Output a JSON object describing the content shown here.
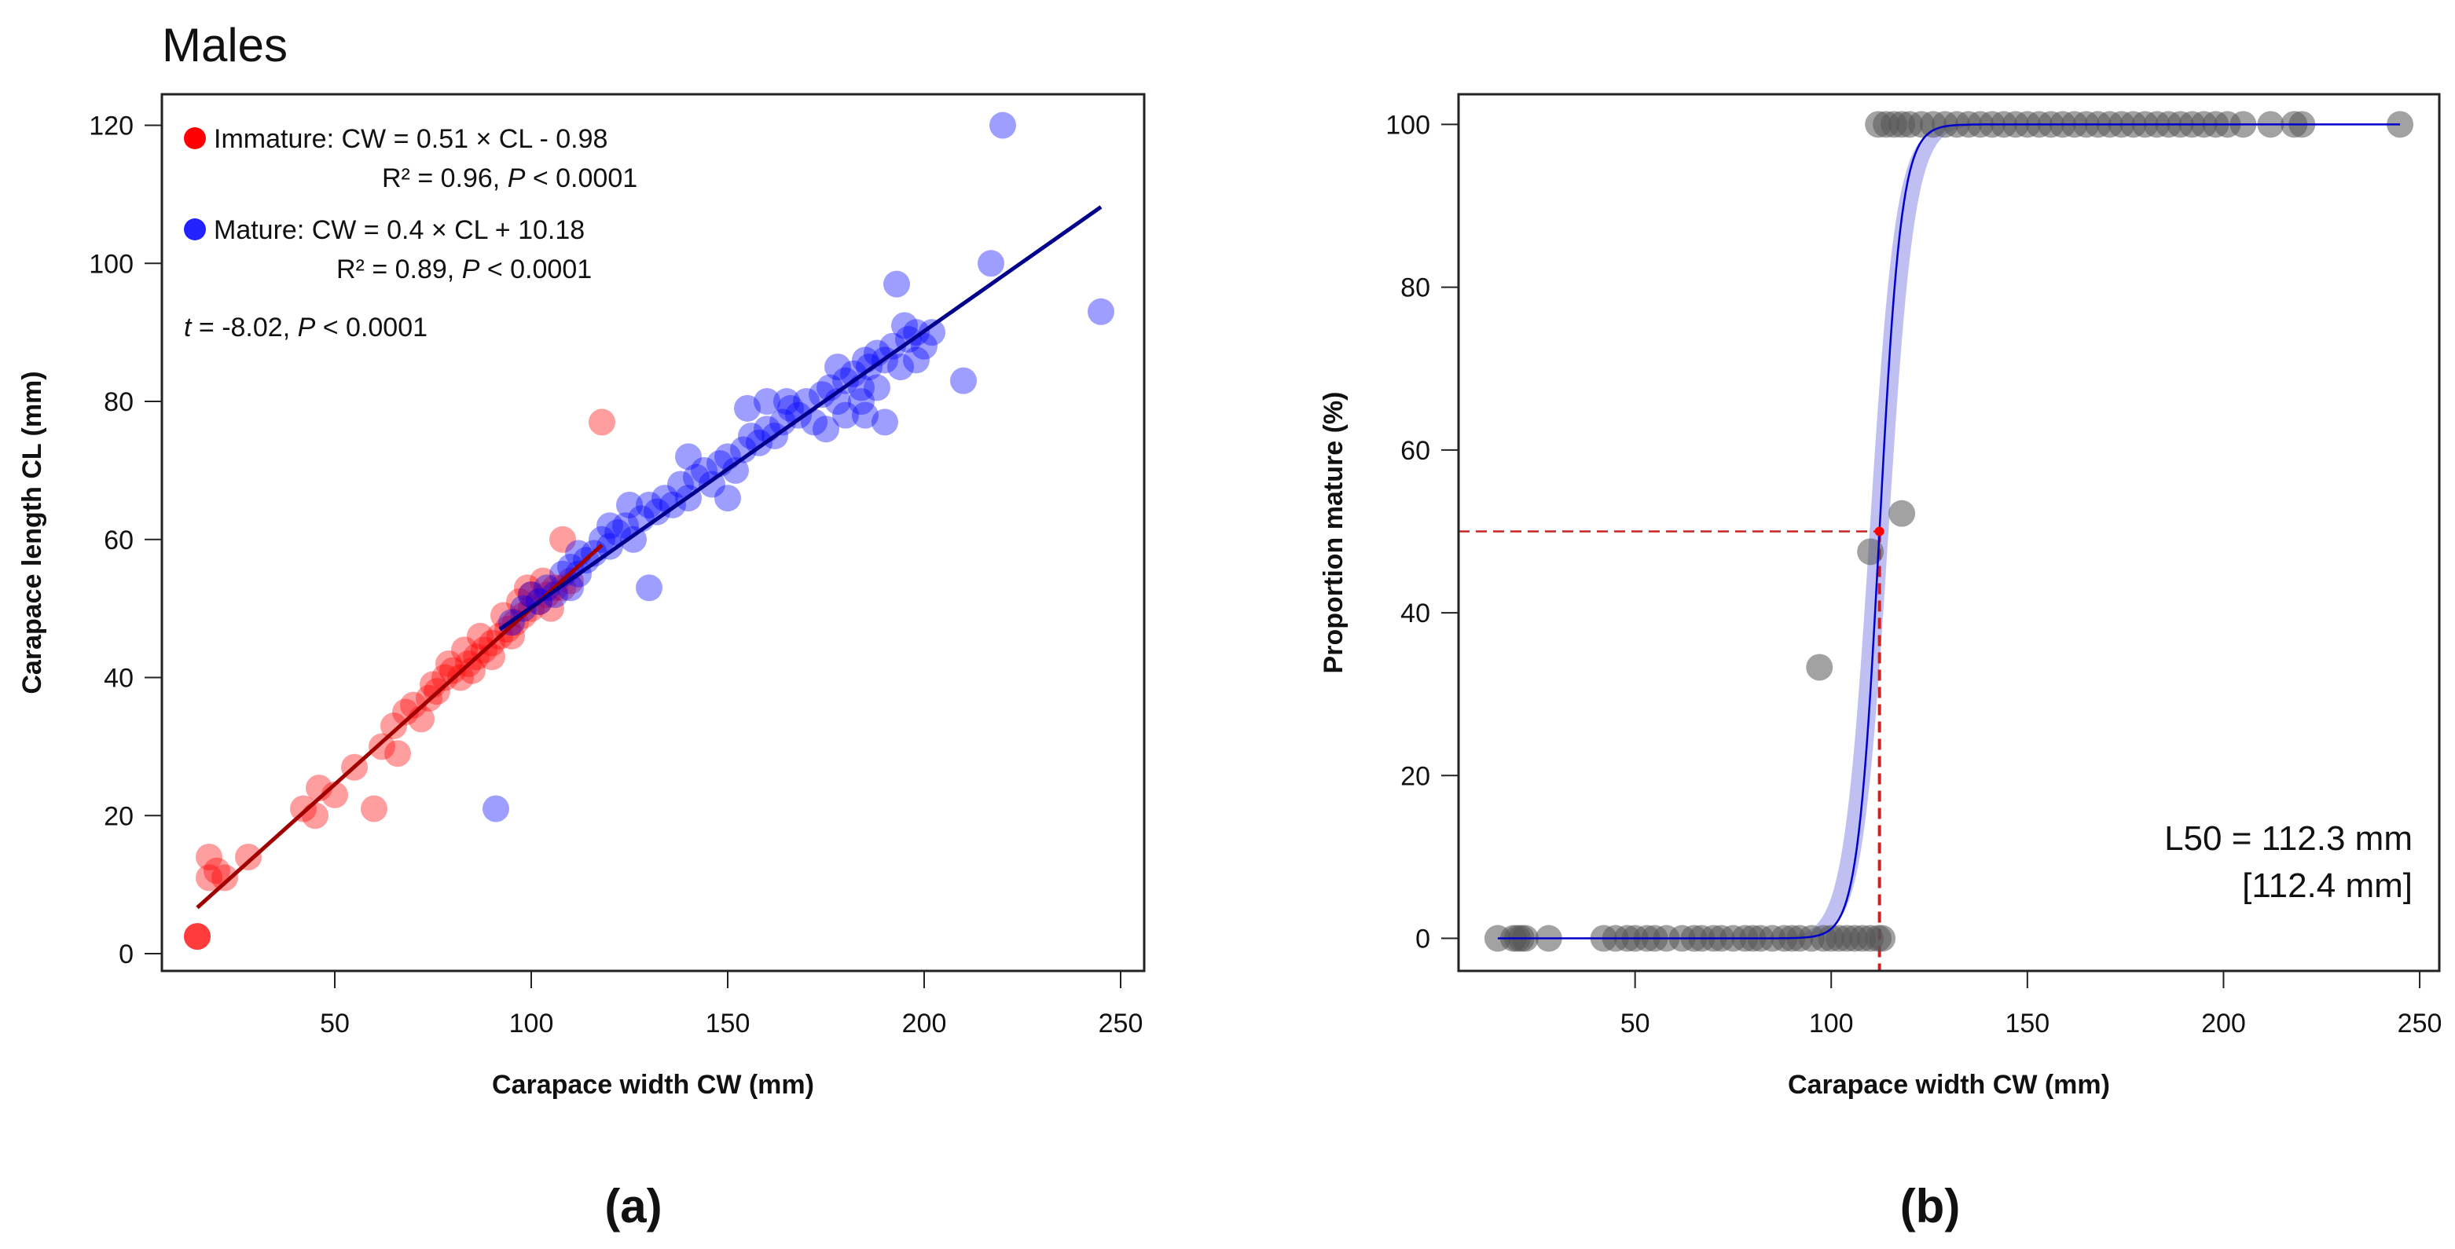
{
  "chart_data": [
    {
      "type": "scatter",
      "title": "Males",
      "panel_label": "(a)",
      "xlabel": "Carapace width CW (mm)",
      "ylabel": "Carapace length CL (mm)",
      "xlim": [
        6,
        256
      ],
      "ylim": [
        -2.5,
        124.5
      ],
      "xticks": [
        50,
        100,
        150,
        200,
        250
      ],
      "yticks": [
        0,
        20,
        40,
        60,
        80,
        100,
        120
      ],
      "grid": false,
      "legend_position": "top-left",
      "series": [
        {
          "name": "Immature",
          "color": "#ff0000",
          "equation": "Immature:  CW = 0.51 × CL - 0.98",
          "stats_r2": "R² = 0.96, ",
          "stats_p_label": "P",
          "stats_p_value": " < 0.0001",
          "fit": {
            "slope": 0.51,
            "intercept": -0.98,
            "x_range": [
              15,
              118
            ],
            "color": "#a00000"
          },
          "points": [
            [
              15,
              2.5
            ],
            [
              15,
              2.5
            ],
            [
              15,
              2.5
            ],
            [
              18,
              14
            ],
            [
              18,
              11
            ],
            [
              20,
              12
            ],
            [
              22,
              11
            ],
            [
              28,
              14
            ],
            [
              42,
              21
            ],
            [
              45,
              20
            ],
            [
              46,
              24
            ],
            [
              50,
              23
            ],
            [
              55,
              27
            ],
            [
              60,
              21
            ],
            [
              62,
              30
            ],
            [
              65,
              33
            ],
            [
              66,
              29
            ],
            [
              68,
              35
            ],
            [
              70,
              36
            ],
            [
              72,
              34
            ],
            [
              74,
              37
            ],
            [
              75,
              39
            ],
            [
              76,
              38
            ],
            [
              78,
              40
            ],
            [
              79,
              42
            ],
            [
              80,
              41
            ],
            [
              82,
              40
            ],
            [
              84,
              42
            ],
            [
              85,
              41
            ],
            [
              86,
              43
            ],
            [
              88,
              44
            ],
            [
              90,
              45
            ],
            [
              90,
              43
            ],
            [
              92,
              46
            ],
            [
              94,
              47
            ],
            [
              95,
              46
            ],
            [
              96,
              48
            ],
            [
              97,
              51
            ],
            [
              98,
              49
            ],
            [
              100,
              50
            ],
            [
              100,
              52
            ],
            [
              102,
              51
            ],
            [
              104,
              52
            ],
            [
              105,
              50
            ],
            [
              106,
              53
            ],
            [
              108,
              53
            ],
            [
              108,
              60
            ],
            [
              110,
              54
            ],
            [
              118,
              77
            ],
            [
              83,
              44
            ],
            [
              87,
              46
            ],
            [
              93,
              49
            ],
            [
              99,
              53
            ],
            [
              103,
              54
            ]
          ]
        },
        {
          "name": "Mature",
          "color": "#0000ff",
          "equation": "Mature:  CW = 0.4 × CL + 10.18",
          "stats_r2": "R² = 0.89, ",
          "stats_p_label": "P",
          "stats_p_value": " < 0.0001",
          "fit": {
            "slope": 0.4,
            "intercept": 10.18,
            "x_range": [
              92,
              245
            ],
            "color": "#00008b"
          },
          "points": [
            [
              91,
              21
            ],
            [
              130,
              53
            ],
            [
              220,
              120
            ],
            [
              217,
              100
            ],
            [
              245,
              93
            ],
            [
              210,
              83
            ],
            [
              193,
              97
            ],
            [
              190,
              77
            ],
            [
              95,
              48
            ],
            [
              98,
              50
            ],
            [
              100,
              52
            ],
            [
              102,
              51
            ],
            [
              104,
              53
            ],
            [
              106,
              52
            ],
            [
              108,
              55
            ],
            [
              110,
              56
            ],
            [
              112,
              55
            ],
            [
              114,
              57
            ],
            [
              116,
              58
            ],
            [
              118,
              60
            ],
            [
              120,
              59
            ],
            [
              122,
              61
            ],
            [
              124,
              62
            ],
            [
              126,
              60
            ],
            [
              128,
              63
            ],
            [
              130,
              65
            ],
            [
              132,
              64
            ],
            [
              134,
              66
            ],
            [
              136,
              65
            ],
            [
              138,
              68
            ],
            [
              140,
              66
            ],
            [
              142,
              69
            ],
            [
              144,
              70
            ],
            [
              146,
              68
            ],
            [
              148,
              71
            ],
            [
              150,
              72
            ],
            [
              152,
              70
            ],
            [
              154,
              73
            ],
            [
              155,
              79
            ],
            [
              156,
              75
            ],
            [
              158,
              74
            ],
            [
              160,
              76
            ],
            [
              162,
              75
            ],
            [
              164,
              77
            ],
            [
              166,
              79
            ],
            [
              168,
              78
            ],
            [
              170,
              80
            ],
            [
              172,
              77
            ],
            [
              174,
              81
            ],
            [
              176,
              82
            ],
            [
              178,
              80
            ],
            [
              180,
              83
            ],
            [
              182,
              84
            ],
            [
              184,
              82
            ],
            [
              185,
              86
            ],
            [
              186,
              85
            ],
            [
              188,
              87
            ],
            [
              190,
              86
            ],
            [
              192,
              88
            ],
            [
              194,
              85
            ],
            [
              196,
              89
            ],
            [
              198,
              90
            ],
            [
              200,
              88
            ],
            [
              202,
              90
            ],
            [
              188,
              82
            ],
            [
              180,
              78
            ],
            [
              175,
              76
            ],
            [
              165,
              80
            ],
            [
              150,
              66
            ],
            [
              140,
              72
            ],
            [
              160,
              80
            ],
            [
              178,
              85
            ],
            [
              184,
              80
            ],
            [
              195,
              91
            ],
            [
              198,
              86
            ],
            [
              120,
              62
            ],
            [
              125,
              65
            ],
            [
              110,
              53
            ],
            [
              112,
              58
            ],
            [
              185,
              78
            ]
          ]
        }
      ],
      "annotation_t_label": "t",
      "annotation_t_value": " = -8.02, ",
      "annotation_p_label": "P",
      "annotation_p_value": " < 0.0001"
    },
    {
      "type": "scatter",
      "panel_label": "(b)",
      "xlabel": "Carapace width CW (mm)",
      "ylabel": "Proportion mature (%)",
      "xlim": [
        5,
        255
      ],
      "ylim": [
        -4,
        103.7
      ],
      "xticks": [
        50,
        100,
        150,
        200,
        250
      ],
      "yticks": [
        0,
        20,
        40,
        60,
        80,
        100
      ],
      "grid": false,
      "point_color": "#555555",
      "curve_color": "#0000cc",
      "ci_color": "#aaaaee",
      "ref_line_color": "#cc2222",
      "logistic": {
        "L50": 112.3,
        "slope": 0.36,
        "x_range": [
          15,
          245
        ]
      },
      "ci_upper": {
        "L50": 109.8,
        "slope": 0.3
      },
      "ci_lower": {
        "L50": 114.6,
        "slope": 0.3
      },
      "l50_annotation": "L50 = 112.3 mm",
      "l50_bracket": "[112.4 mm]",
      "points": [
        [
          15,
          0
        ],
        [
          19,
          0
        ],
        [
          20,
          0
        ],
        [
          21,
          0
        ],
        [
          22,
          0
        ],
        [
          28,
          0
        ],
        [
          42,
          0
        ],
        [
          45,
          0
        ],
        [
          48,
          0
        ],
        [
          50,
          0
        ],
        [
          53,
          0
        ],
        [
          55,
          0
        ],
        [
          58,
          0
        ],
        [
          62,
          0
        ],
        [
          65,
          0
        ],
        [
          67,
          0
        ],
        [
          70,
          0
        ],
        [
          72,
          0
        ],
        [
          75,
          0
        ],
        [
          78,
          0
        ],
        [
          80,
          0
        ],
        [
          82,
          0
        ],
        [
          85,
          0
        ],
        [
          88,
          0
        ],
        [
          90,
          0
        ],
        [
          92,
          0
        ],
        [
          95,
          0
        ],
        [
          98,
          0
        ],
        [
          100,
          0
        ],
        [
          102,
          0
        ],
        [
          104,
          0
        ],
        [
          106,
          0
        ],
        [
          108,
          0
        ],
        [
          110,
          0
        ],
        [
          112,
          0
        ],
        [
          113,
          0
        ],
        [
          97,
          33.3
        ],
        [
          110,
          47.5
        ],
        [
          118,
          52.2
        ],
        [
          112,
          100
        ],
        [
          114,
          100
        ],
        [
          116,
          100
        ],
        [
          118,
          100
        ],
        [
          120,
          100
        ],
        [
          123,
          100
        ],
        [
          126,
          100
        ],
        [
          129,
          100
        ],
        [
          132,
          100
        ],
        [
          135,
          100
        ],
        [
          138,
          100
        ],
        [
          141,
          100
        ],
        [
          144,
          100
        ],
        [
          147,
          100
        ],
        [
          150,
          100
        ],
        [
          153,
          100
        ],
        [
          156,
          100
        ],
        [
          159,
          100
        ],
        [
          162,
          100
        ],
        [
          165,
          100
        ],
        [
          168,
          100
        ],
        [
          171,
          100
        ],
        [
          174,
          100
        ],
        [
          177,
          100
        ],
        [
          180,
          100
        ],
        [
          183,
          100
        ],
        [
          186,
          100
        ],
        [
          189,
          100
        ],
        [
          192,
          100
        ],
        [
          195,
          100
        ],
        [
          198,
          100
        ],
        [
          201,
          100
        ],
        [
          205,
          100
        ],
        [
          212,
          100
        ],
        [
          218,
          100
        ],
        [
          220,
          100
        ],
        [
          245,
          100
        ]
      ]
    }
  ]
}
